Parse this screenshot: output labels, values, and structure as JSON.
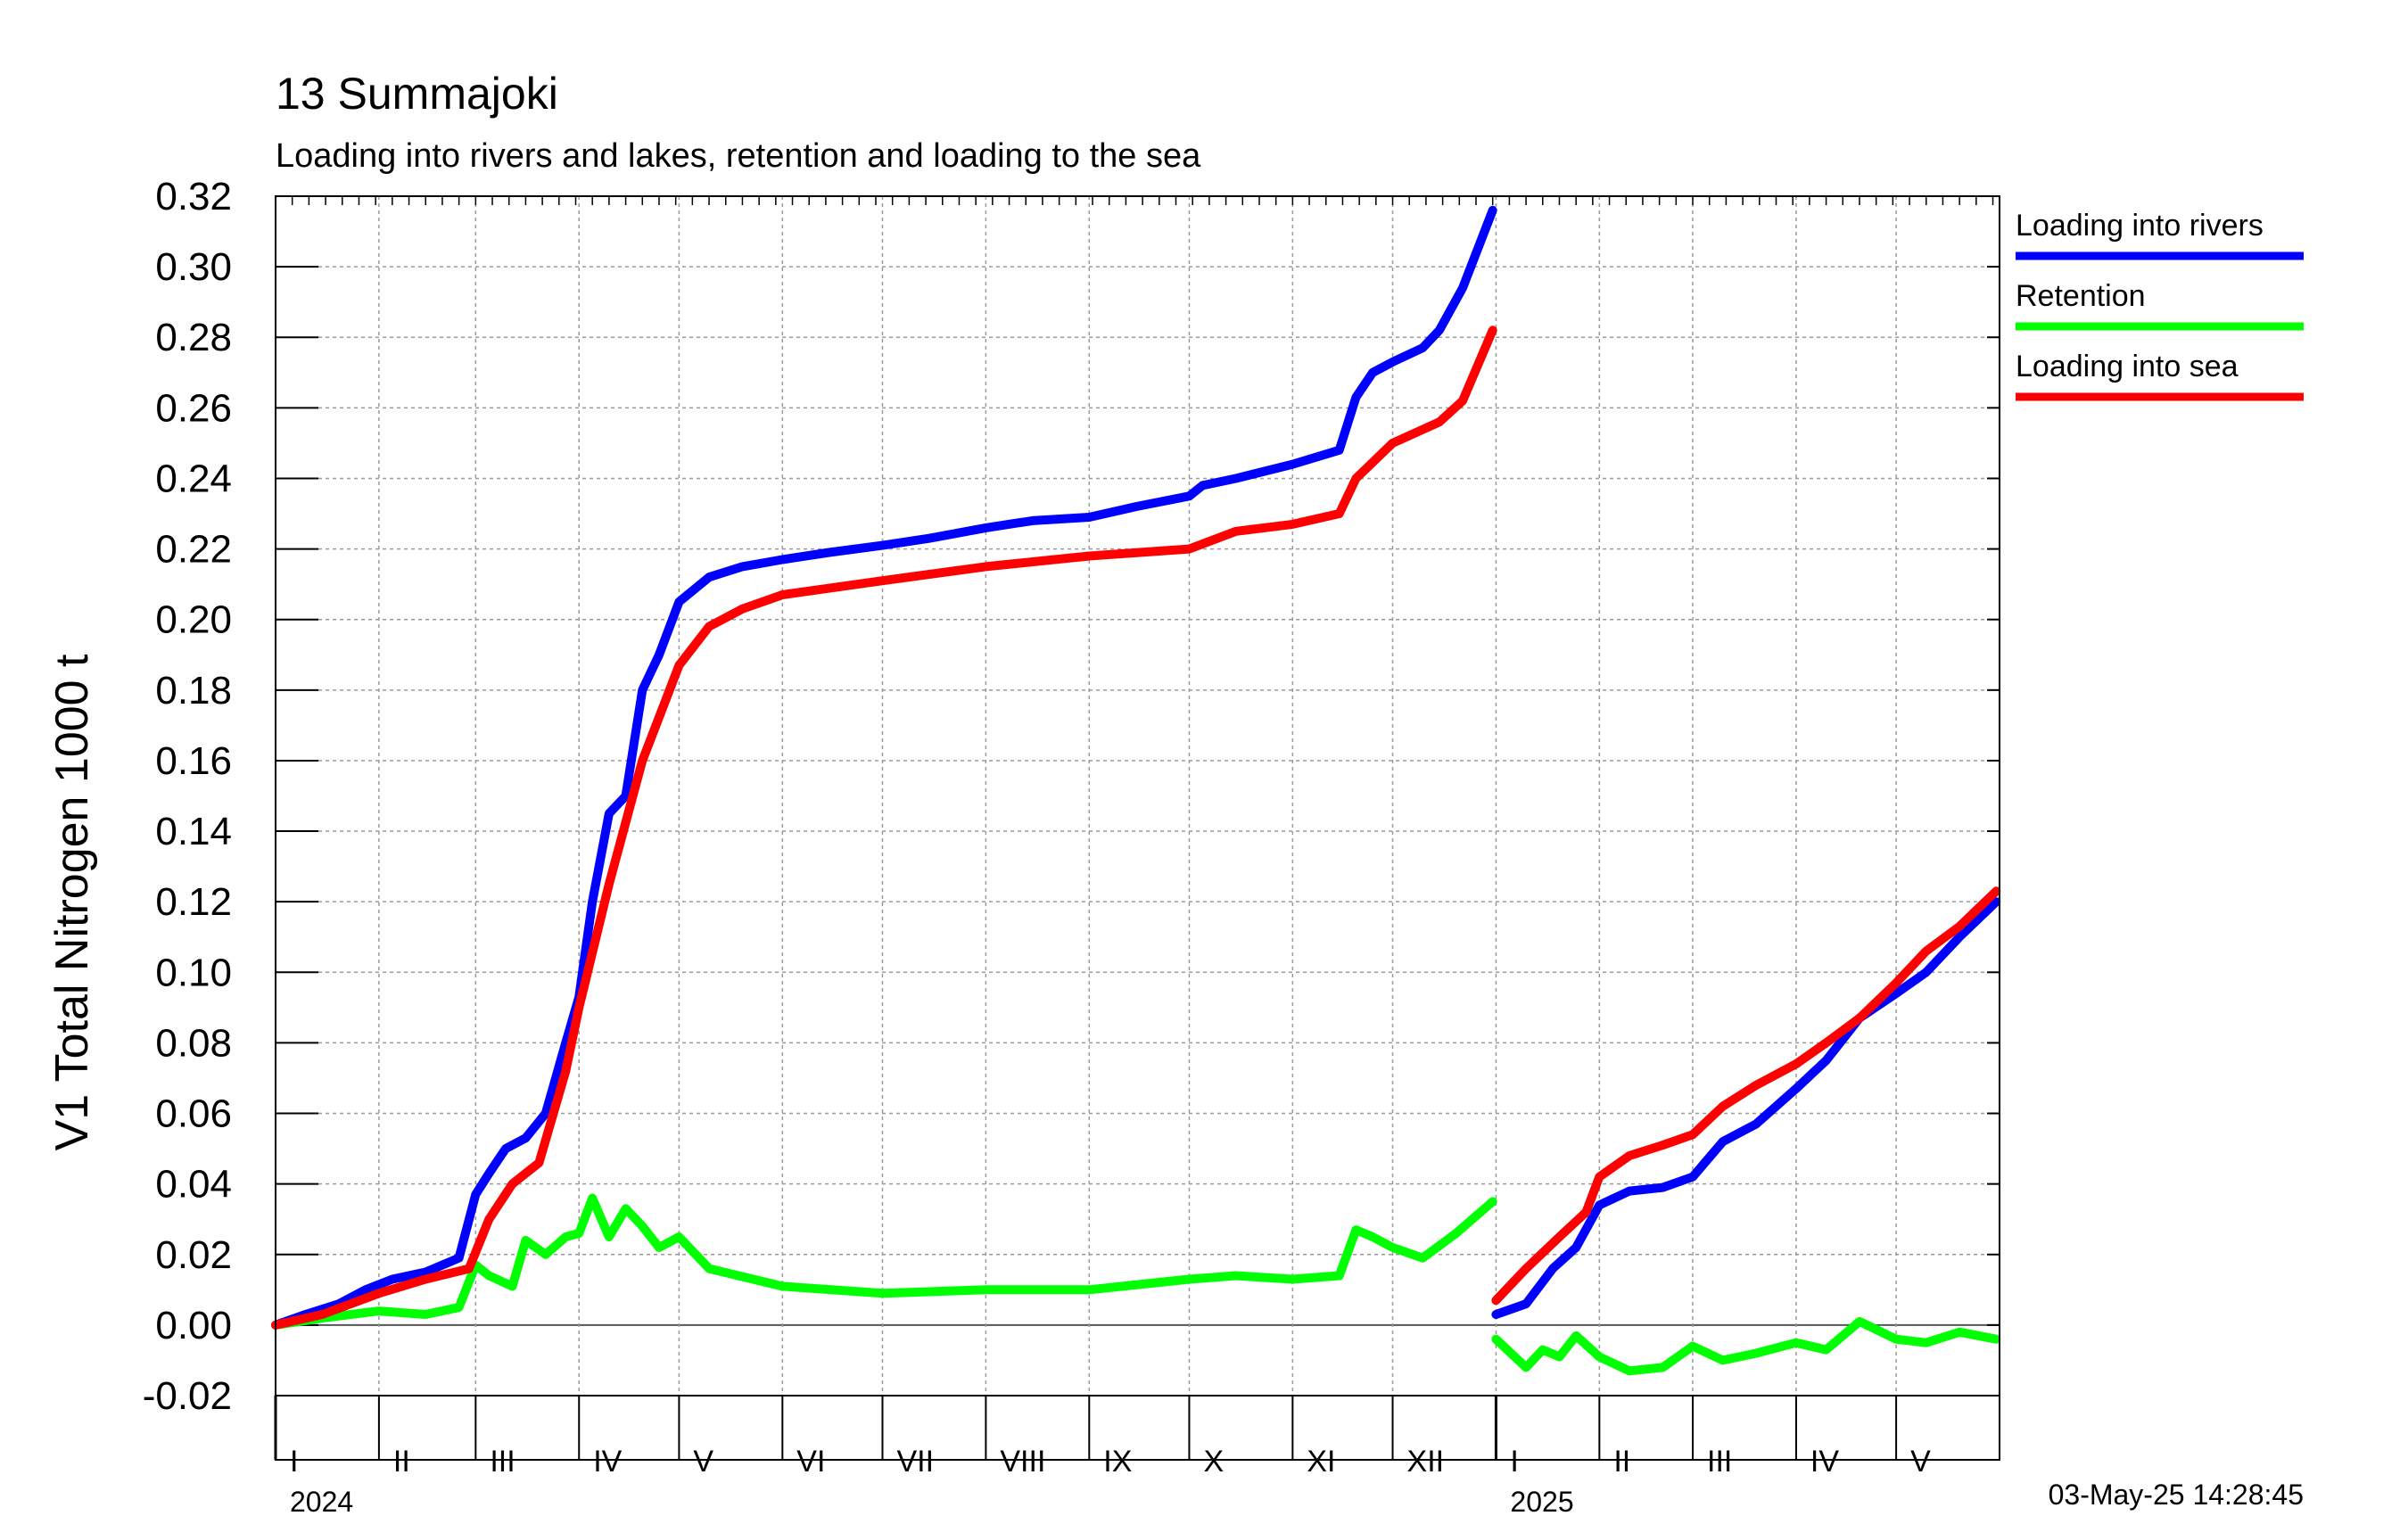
{
  "chart_data": {
    "type": "line",
    "title": "13 Summajoki",
    "subtitle": "Loading into rivers and lakes, retention and loading to the sea",
    "ylabel": "V1 Total Nitrogen 1000 t",
    "ylim": [
      -0.02,
      0.32
    ],
    "y_ticks": [
      "0.32",
      "0.30",
      "0.28",
      "0.26",
      "0.24",
      "0.22",
      "0.20",
      "0.18",
      "0.16",
      "0.14",
      "0.12",
      "0.10",
      "0.08",
      "0.06",
      "0.04",
      "0.02",
      "0.00",
      "-0.02"
    ],
    "x_start": "2024-01-01",
    "x_end": "2025-05-31",
    "year_labels": [
      {
        "label": "2024",
        "date": "2024-01-01"
      },
      {
        "label": "2025",
        "date": "2025-01-01"
      }
    ],
    "month_labels": [
      {
        "label": "I",
        "date": "2024-01-01"
      },
      {
        "label": "II",
        "date": "2024-02-01"
      },
      {
        "label": "III",
        "date": "2024-03-01"
      },
      {
        "label": "IV",
        "date": "2024-04-01"
      },
      {
        "label": "V",
        "date": "2024-05-01"
      },
      {
        "label": "VI",
        "date": "2024-06-01"
      },
      {
        "label": "VII",
        "date": "2024-07-01"
      },
      {
        "label": "VIII",
        "date": "2024-08-01"
      },
      {
        "label": "IX",
        "date": "2024-09-01"
      },
      {
        "label": "X",
        "date": "2024-10-01"
      },
      {
        "label": "XI",
        "date": "2024-11-01"
      },
      {
        "label": "XII",
        "date": "2024-12-01"
      },
      {
        "label": "I",
        "date": "2025-01-01"
      },
      {
        "label": "II",
        "date": "2025-02-01"
      },
      {
        "label": "III",
        "date": "2025-03-01"
      },
      {
        "label": "IV",
        "date": "2025-04-01"
      },
      {
        "label": "V",
        "date": "2025-05-01"
      }
    ],
    "timestamp": "03-May-25 14:28:45",
    "grid": true,
    "legend_position": "right",
    "series": [
      {
        "name": "Loading into rivers",
        "color": "#0000ff",
        "segments": [
          {
            "x": [
              "2024-01-01",
              "2024-01-10",
              "2024-01-20",
              "2024-01-28",
              "2024-02-05",
              "2024-02-15",
              "2024-02-25",
              "2024-03-01",
              "2024-03-05",
              "2024-03-10",
              "2024-03-16",
              "2024-03-22",
              "2024-03-28",
              "2024-04-01",
              "2024-04-05",
              "2024-04-10",
              "2024-04-15",
              "2024-04-20",
              "2024-04-25",
              "2024-05-01",
              "2024-05-10",
              "2024-05-20",
              "2024-06-01",
              "2024-06-15",
              "2024-07-01",
              "2024-07-15",
              "2024-08-01",
              "2024-08-15",
              "2024-09-01",
              "2024-09-15",
              "2024-10-01",
              "2024-10-05",
              "2024-10-15",
              "2024-11-01",
              "2024-11-15",
              "2024-11-20",
              "2024-11-25",
              "2024-12-01",
              "2024-12-10",
              "2024-12-15",
              "2024-12-22",
              "2024-12-31"
            ],
            "y": [
              0.0,
              0.003,
              0.006,
              0.01,
              0.013,
              0.015,
              0.019,
              0.037,
              0.043,
              0.05,
              0.053,
              0.06,
              0.08,
              0.093,
              0.12,
              0.145,
              0.15,
              0.18,
              0.19,
              0.205,
              0.212,
              0.215,
              0.217,
              0.219,
              0.221,
              0.223,
              0.226,
              0.228,
              0.229,
              0.232,
              0.235,
              0.238,
              0.24,
              0.244,
              0.248,
              0.263,
              0.27,
              0.273,
              0.277,
              0.282,
              0.294,
              0.316
            ]
          },
          {
            "x": [
              "2025-01-01",
              "2025-01-10",
              "2025-01-18",
              "2025-01-25",
              "2025-02-01",
              "2025-02-10",
              "2025-02-20",
              "2025-03-01",
              "2025-03-10",
              "2025-03-20",
              "2025-04-01",
              "2025-04-10",
              "2025-04-20",
              "2025-05-01",
              "2025-05-10",
              "2025-05-20",
              "2025-05-31"
            ],
            "y": [
              0.003,
              0.006,
              0.016,
              0.022,
              0.034,
              0.038,
              0.039,
              0.042,
              0.052,
              0.057,
              0.067,
              0.075,
              0.087,
              0.094,
              0.1,
              0.11,
              0.12
            ]
          }
        ]
      },
      {
        "name": "Retention",
        "color": "#00ff00",
        "segments": [
          {
            "x": [
              "2024-01-01",
              "2024-01-15",
              "2024-02-01",
              "2024-02-15",
              "2024-02-25",
              "2024-03-01",
              "2024-03-05",
              "2024-03-12",
              "2024-03-16",
              "2024-03-22",
              "2024-03-28",
              "2024-04-01",
              "2024-04-05",
              "2024-04-10",
              "2024-04-15",
              "2024-04-20",
              "2024-04-25",
              "2024-05-01",
              "2024-05-10",
              "2024-06-01",
              "2024-07-01",
              "2024-08-01",
              "2024-09-01",
              "2024-10-01",
              "2024-10-15",
              "2024-11-01",
              "2024-11-15",
              "2024-11-20",
              "2024-11-25",
              "2024-12-01",
              "2024-12-10",
              "2024-12-20",
              "2024-12-31"
            ],
            "y": [
              0.0,
              0.002,
              0.004,
              0.003,
              0.005,
              0.017,
              0.014,
              0.011,
              0.024,
              0.02,
              0.025,
              0.026,
              0.036,
              0.025,
              0.033,
              0.028,
              0.022,
              0.025,
              0.016,
              0.011,
              0.009,
              0.01,
              0.01,
              0.013,
              0.014,
              0.013,
              0.014,
              0.027,
              0.025,
              0.022,
              0.019,
              0.026,
              0.035
            ]
          },
          {
            "x": [
              "2025-01-01",
              "2025-01-10",
              "2025-01-15",
              "2025-01-20",
              "2025-01-25",
              "2025-02-01",
              "2025-02-10",
              "2025-02-20",
              "2025-03-01",
              "2025-03-10",
              "2025-03-20",
              "2025-04-01",
              "2025-04-10",
              "2025-04-20",
              "2025-05-01",
              "2025-05-10",
              "2025-05-20",
              "2025-05-31"
            ],
            "y": [
              -0.004,
              -0.012,
              -0.007,
              -0.009,
              -0.003,
              -0.009,
              -0.013,
              -0.012,
              -0.006,
              -0.01,
              -0.008,
              -0.005,
              -0.007,
              0.001,
              -0.004,
              -0.005,
              -0.002,
              -0.004
            ]
          }
        ]
      },
      {
        "name": "Loading into sea",
        "color": "#ff0000",
        "segments": [
          {
            "x": [
              "2024-01-01",
              "2024-01-15",
              "2024-02-01",
              "2024-02-15",
              "2024-02-28",
              "2024-03-05",
              "2024-03-12",
              "2024-03-20",
              "2024-03-28",
              "2024-04-01",
              "2024-04-10",
              "2024-04-20",
              "2024-05-01",
              "2024-05-10",
              "2024-05-20",
              "2024-06-01",
              "2024-07-01",
              "2024-08-01",
              "2024-09-01",
              "2024-10-01",
              "2024-10-15",
              "2024-11-01",
              "2024-11-15",
              "2024-11-20",
              "2024-12-01",
              "2024-12-15",
              "2024-12-22",
              "2024-12-31"
            ],
            "y": [
              0.0,
              0.003,
              0.009,
              0.013,
              0.016,
              0.03,
              0.04,
              0.046,
              0.072,
              0.09,
              0.125,
              0.16,
              0.187,
              0.198,
              0.203,
              0.207,
              0.211,
              0.215,
              0.218,
              0.22,
              0.225,
              0.227,
              0.23,
              0.24,
              0.25,
              0.256,
              0.262,
              0.282
            ]
          },
          {
            "x": [
              "2025-01-01",
              "2025-01-10",
              "2025-01-20",
              "2025-01-28",
              "2025-02-01",
              "2025-02-10",
              "2025-02-20",
              "2025-03-01",
              "2025-03-10",
              "2025-03-20",
              "2025-04-01",
              "2025-04-10",
              "2025-04-20",
              "2025-05-01",
              "2025-05-10",
              "2025-05-20",
              "2025-05-31"
            ],
            "y": [
              0.007,
              0.016,
              0.025,
              0.032,
              0.042,
              0.048,
              0.051,
              0.054,
              0.062,
              0.068,
              0.074,
              0.08,
              0.087,
              0.097,
              0.106,
              0.113,
              0.123
            ]
          }
        ]
      }
    ]
  }
}
